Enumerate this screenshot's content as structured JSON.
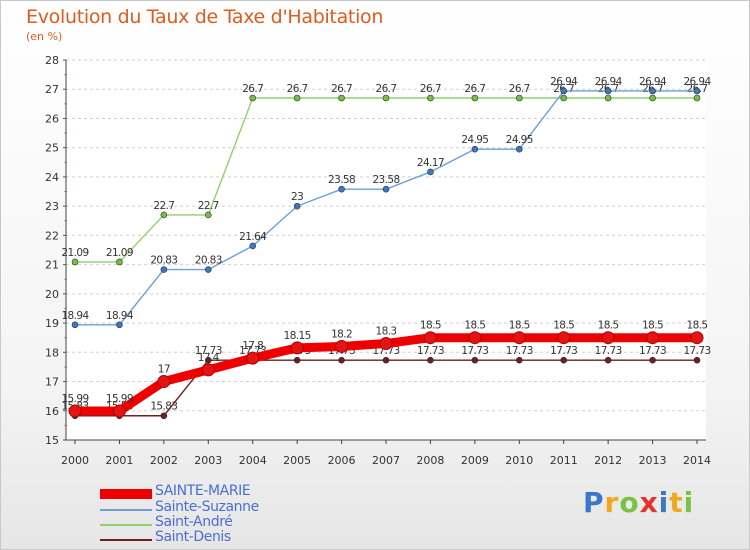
{
  "title": "Evolution du Taux de Taxe d'Habitation",
  "subtitle": "(en %)",
  "logo": {
    "text": "Proxiti",
    "letters": [
      "P",
      "r",
      "o",
      "x",
      "i",
      "t",
      "i"
    ],
    "colors": [
      "#3b78c8",
      "#f2a81d",
      "#7cc242",
      "#e2342b",
      "#3b78c8",
      "#f2a81d",
      "#7cc242"
    ]
  },
  "chart_data": {
    "type": "line",
    "x": [
      2000,
      2001,
      2002,
      2003,
      2004,
      2005,
      2006,
      2007,
      2008,
      2009,
      2010,
      2011,
      2012,
      2013,
      2014
    ],
    "ylim": [
      15,
      28
    ],
    "yticks": [
      15,
      16,
      17,
      18,
      19,
      20,
      21,
      22,
      23,
      24,
      25,
      26,
      27,
      28
    ],
    "grid": "horizontal dashed",
    "legend_position": "bottom-left",
    "series": [
      {
        "name": "Saint-Denis",
        "color": "#6b1f1f",
        "marker_color": "#6b1f1f",
        "values": [
          15.83,
          15.83,
          15.83,
          17.73,
          17.73,
          17.73,
          17.73,
          17.73,
          17.73,
          17.73,
          17.73,
          17.73,
          17.73,
          17.73,
          17.73
        ],
        "labels": [
          "15.83",
          "15.83",
          "15.83",
          "17.73",
          "17.73",
          "17.73",
          "17.73",
          "17.73",
          "17.73",
          "17.73",
          "17.73",
          "17.73",
          "17.73",
          "17.73",
          "17.73"
        ]
      },
      {
        "name": "Saint-André",
        "color": "#8ed26a",
        "marker_color": "#74c141",
        "values": [
          21.09,
          21.09,
          22.7,
          22.7,
          26.7,
          26.7,
          26.7,
          26.7,
          26.7,
          26.7,
          26.7,
          26.7,
          26.7,
          26.7,
          26.7
        ],
        "labels": [
          "21.09",
          "21.09",
          "22.7",
          "22.7",
          "26.7",
          "26.7",
          "26.7",
          "26.7",
          "26.7",
          "26.7",
          "26.7",
          "26.7",
          "26.7",
          "26.7",
          "26.7"
        ]
      },
      {
        "name": "Sainte-Suzanne",
        "color": "#6e9fd4",
        "marker_color": "#3a78c2",
        "values": [
          18.94,
          18.94,
          20.83,
          20.83,
          21.64,
          23,
          23.58,
          23.58,
          24.17,
          24.95,
          24.95,
          26.94,
          26.94,
          26.94,
          26.94
        ],
        "labels": [
          "18.94",
          "18.94",
          "20.83",
          "20.83",
          "21.64",
          "23",
          "23.58",
          "23.58",
          "24.17",
          "24.95",
          "24.95",
          "26.94",
          "26.94",
          "26.94",
          "26.94"
        ]
      },
      {
        "name": "SAINTE-MARIE",
        "color": "#ee0000",
        "marker_color": "#e31414",
        "values": [
          15.99,
          15.99,
          17,
          17.4,
          17.8,
          18.15,
          18.2,
          18.3,
          18.5,
          18.5,
          18.5,
          18.5,
          18.5,
          18.5,
          18.5
        ],
        "labels": [
          "15.99",
          "15.99",
          "17",
          "17.4",
          "17.8",
          "18.15",
          "18.2",
          "18.3",
          "18.5",
          "18.5",
          "18.5",
          "18.5",
          "18.5",
          "18.5",
          "18.5"
        ]
      }
    ]
  },
  "legend": {
    "items": [
      {
        "label": "SAINTE-MARIE",
        "color": "#ee0000"
      },
      {
        "label": "Sainte-Suzanne",
        "color": "#6e9fd4"
      },
      {
        "label": "Saint-André",
        "color": "#8ed26a"
      },
      {
        "label": "Saint-Denis",
        "color": "#6b1f1f"
      }
    ]
  }
}
